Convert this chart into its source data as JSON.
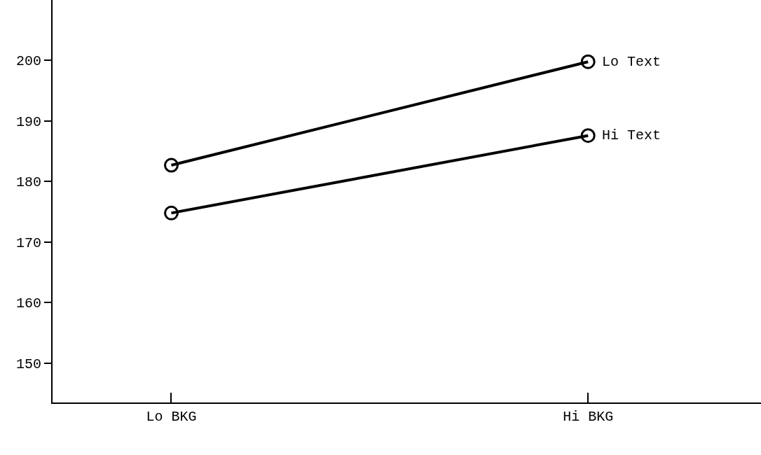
{
  "chart_data": {
    "type": "line",
    "categories": [
      "Lo BKG",
      "Hi BKG"
    ],
    "series": [
      {
        "name": "Lo Text",
        "color": "#000000",
        "values": [
          182.7,
          199.8
        ]
      },
      {
        "name": "Hi Text",
        "color": "#000000",
        "values": [
          174.8,
          187.6
        ]
      }
    ],
    "ylim": [
      143.5,
      210
    ],
    "yticks": [
      150,
      160,
      170,
      180,
      190,
      200
    ],
    "grid": false,
    "legend": false,
    "marker": "circle",
    "line_style": "solid"
  }
}
